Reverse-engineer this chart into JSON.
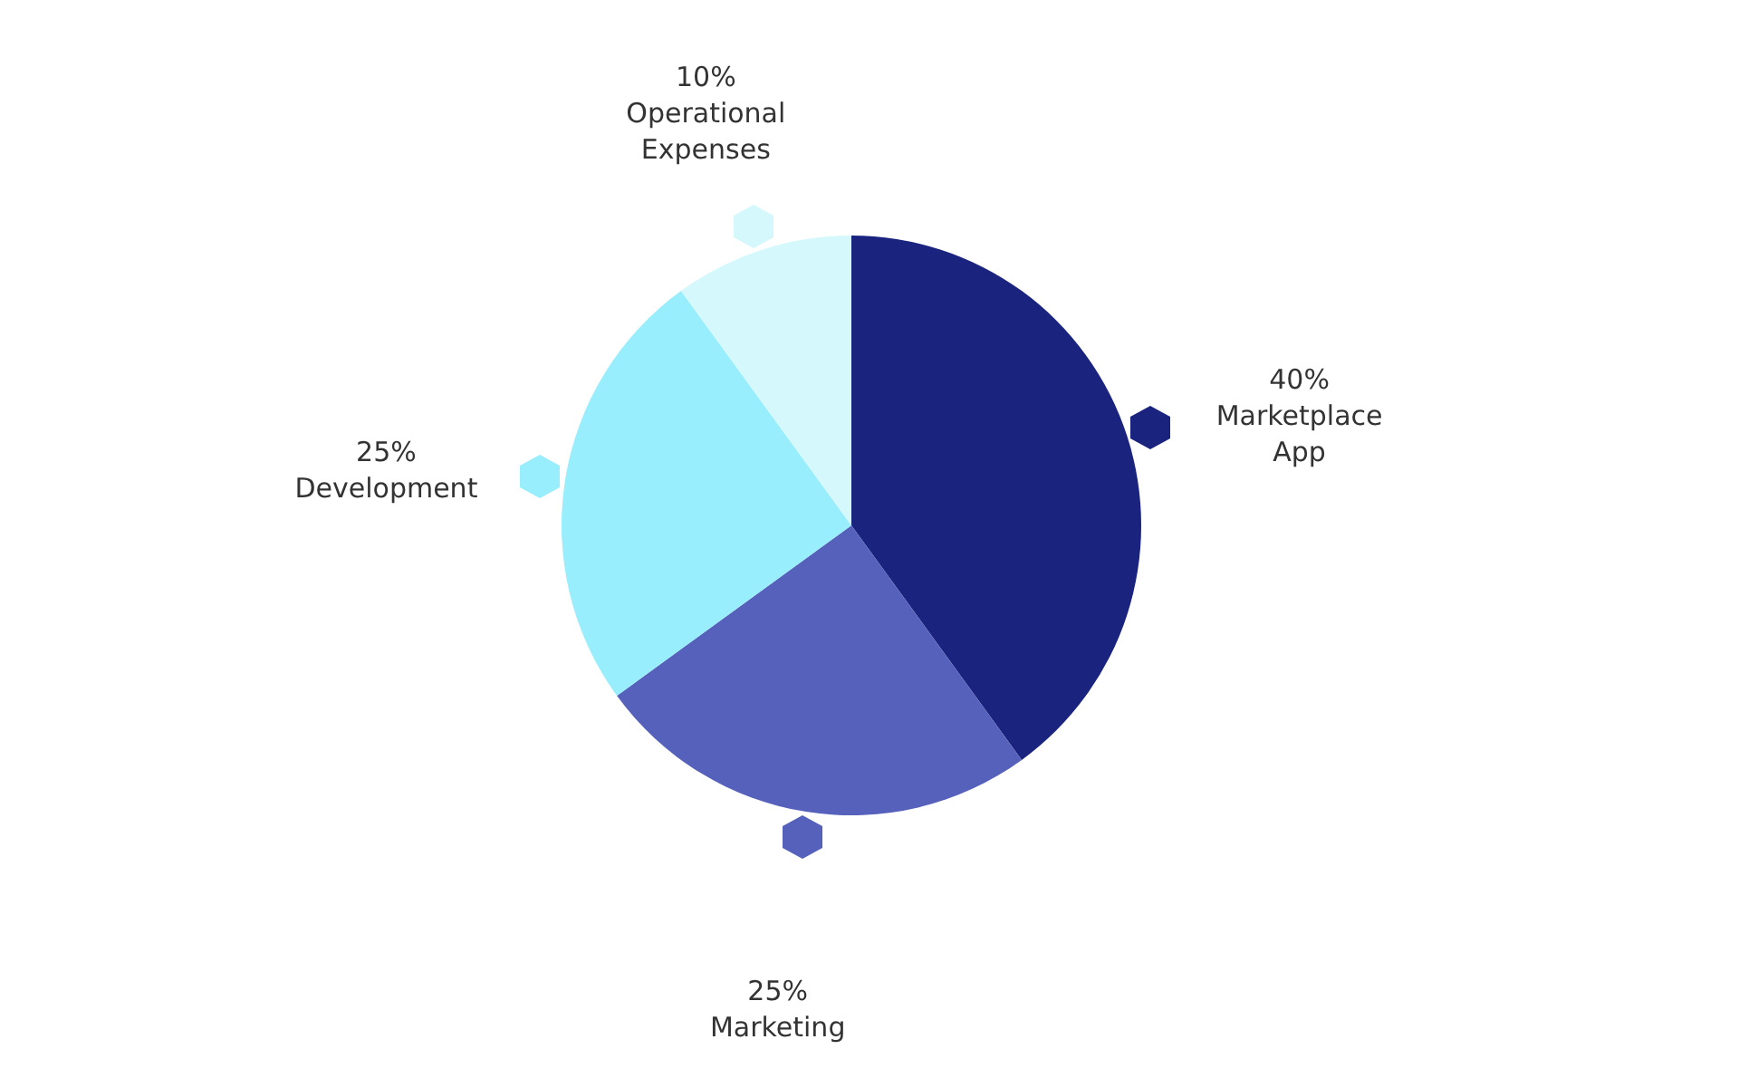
{
  "chart_data": {
    "type": "pie",
    "categories": [
      "Marketplace App",
      "Marketing",
      "Development",
      "Operational Expenses"
    ],
    "values": [
      40,
      25,
      25,
      10
    ],
    "colors": [
      "#1a237e",
      "#5661bb",
      "#98eefc",
      "#d5f8fc"
    ],
    "value_labels": [
      "40%",
      "25%",
      "25%",
      "10%"
    ]
  }
}
